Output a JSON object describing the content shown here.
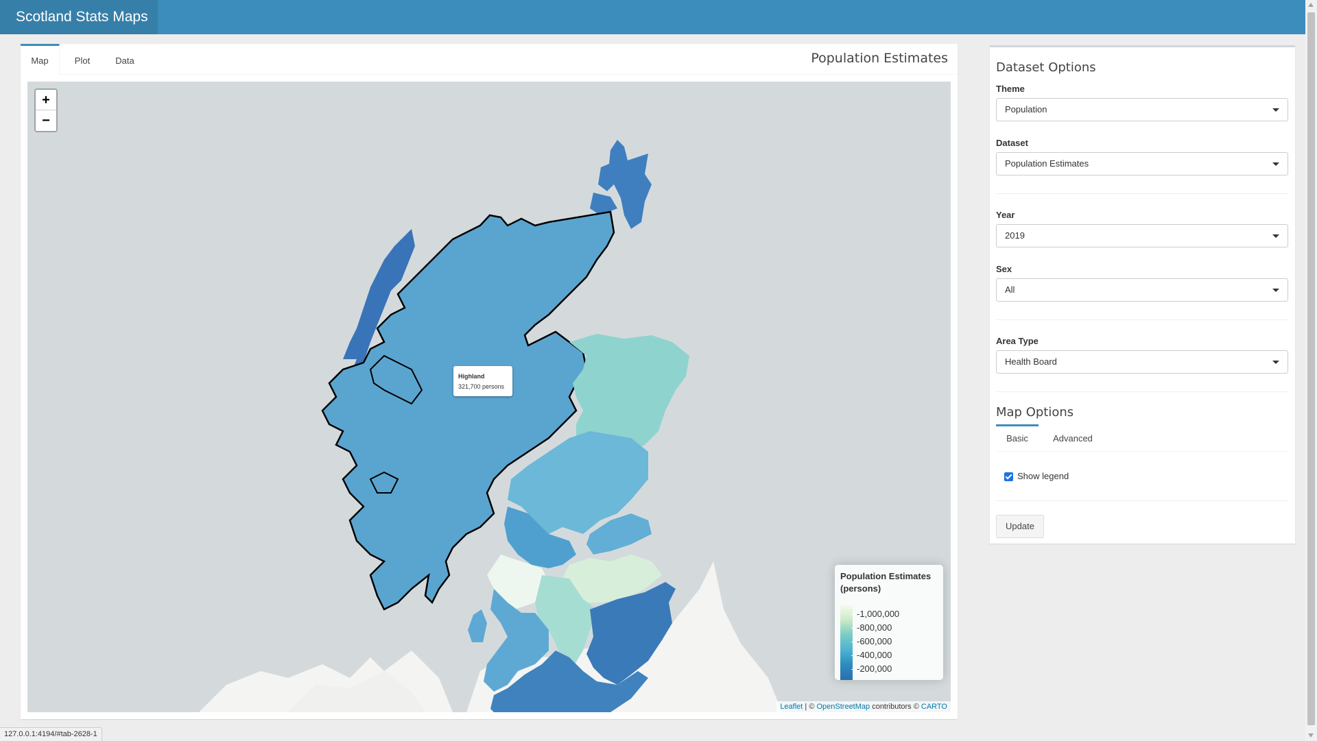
{
  "app": {
    "brand": "Scotland Stats Maps"
  },
  "tabs": [
    {
      "label": "Map",
      "active": true
    },
    {
      "label": "Plot",
      "active": false
    },
    {
      "label": "Data",
      "active": false
    }
  ],
  "panel_title": "Population Estimates",
  "map": {
    "zoom_in": "+",
    "zoom_out": "−",
    "tooltip": {
      "name": "Highland",
      "value": "321,700 persons"
    },
    "legend": {
      "title": "Population Estimates (persons)",
      "labels": [
        "-1,000,000",
        "-800,000",
        "-600,000",
        "-400,000",
        "-200,000"
      ],
      "colors": [
        "#f7fcf0",
        "#ccebc5",
        "#7bccc4",
        "#4eb3d3",
        "#2b8cbe",
        "#2c6cb0"
      ]
    },
    "attribution": {
      "leaflet": "Leaflet",
      "sep1": " | © ",
      "osm": "OpenStreetMap",
      "mid": " contributors © ",
      "carto": "CARTO"
    },
    "region_colors": {
      "highland": "#5aa5cf",
      "islands": "#3f7fbf",
      "grampian": "#8fd3cf",
      "tayside": "#6cb8d8",
      "fife": "#62aed6",
      "greater_glasgow": "#eef7ef",
      "lothian": "#d7efda",
      "lanarkshire": "#a6ddd2",
      "ayrshire": "#5ea9d3",
      "borders": "#3a7ab8",
      "dumfries": "#3f82bd",
      "forth_valley": "#4fa0cf"
    }
  },
  "side": {
    "dataset_options_heading": "Dataset Options",
    "theme": {
      "label": "Theme",
      "value": "Population"
    },
    "dataset": {
      "label": "Dataset",
      "value": "Population Estimates"
    },
    "year": {
      "label": "Year",
      "value": "2019"
    },
    "sex": {
      "label": "Sex",
      "value": "All"
    },
    "area_type": {
      "label": "Area Type",
      "value": "Health Board"
    },
    "map_options_heading": "Map Options",
    "subtabs": [
      {
        "label": "Basic",
        "active": true
      },
      {
        "label": "Advanced",
        "active": false
      }
    ],
    "show_legend": {
      "label": "Show legend",
      "checked": true
    },
    "update_label": "Update"
  },
  "statusbar": "127.0.0.1:4194/#tab-2628-1"
}
